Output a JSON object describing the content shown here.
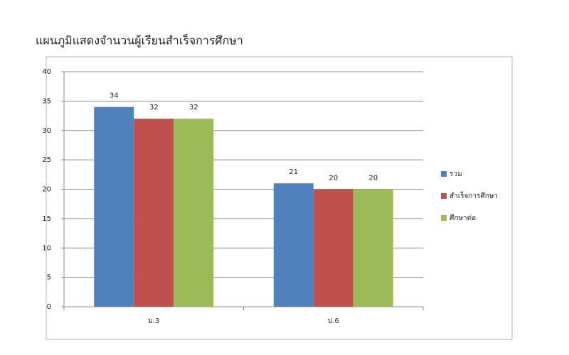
{
  "chart_data": {
    "type": "bar",
    "title": "แผนภูมิแสดงจำนวนผู้เรียนสำเร็จการศึกษา",
    "categories": [
      "ม.3",
      "ป.6"
    ],
    "series": [
      {
        "name": "รวม",
        "color": "#4f81bd",
        "values": [
          34,
          21
        ]
      },
      {
        "name": "สำเร็จการศึกษา",
        "color": "#c0504d",
        "values": [
          32,
          20
        ]
      },
      {
        "name": "ศึกษาต่อ",
        "color": "#9bbb59",
        "values": [
          32,
          20
        ]
      }
    ],
    "ylim": [
      0,
      40
    ],
    "yticks": [
      0,
      5,
      10,
      15,
      20,
      25,
      30,
      35,
      40
    ],
    "grid": true,
    "legend": "right"
  }
}
